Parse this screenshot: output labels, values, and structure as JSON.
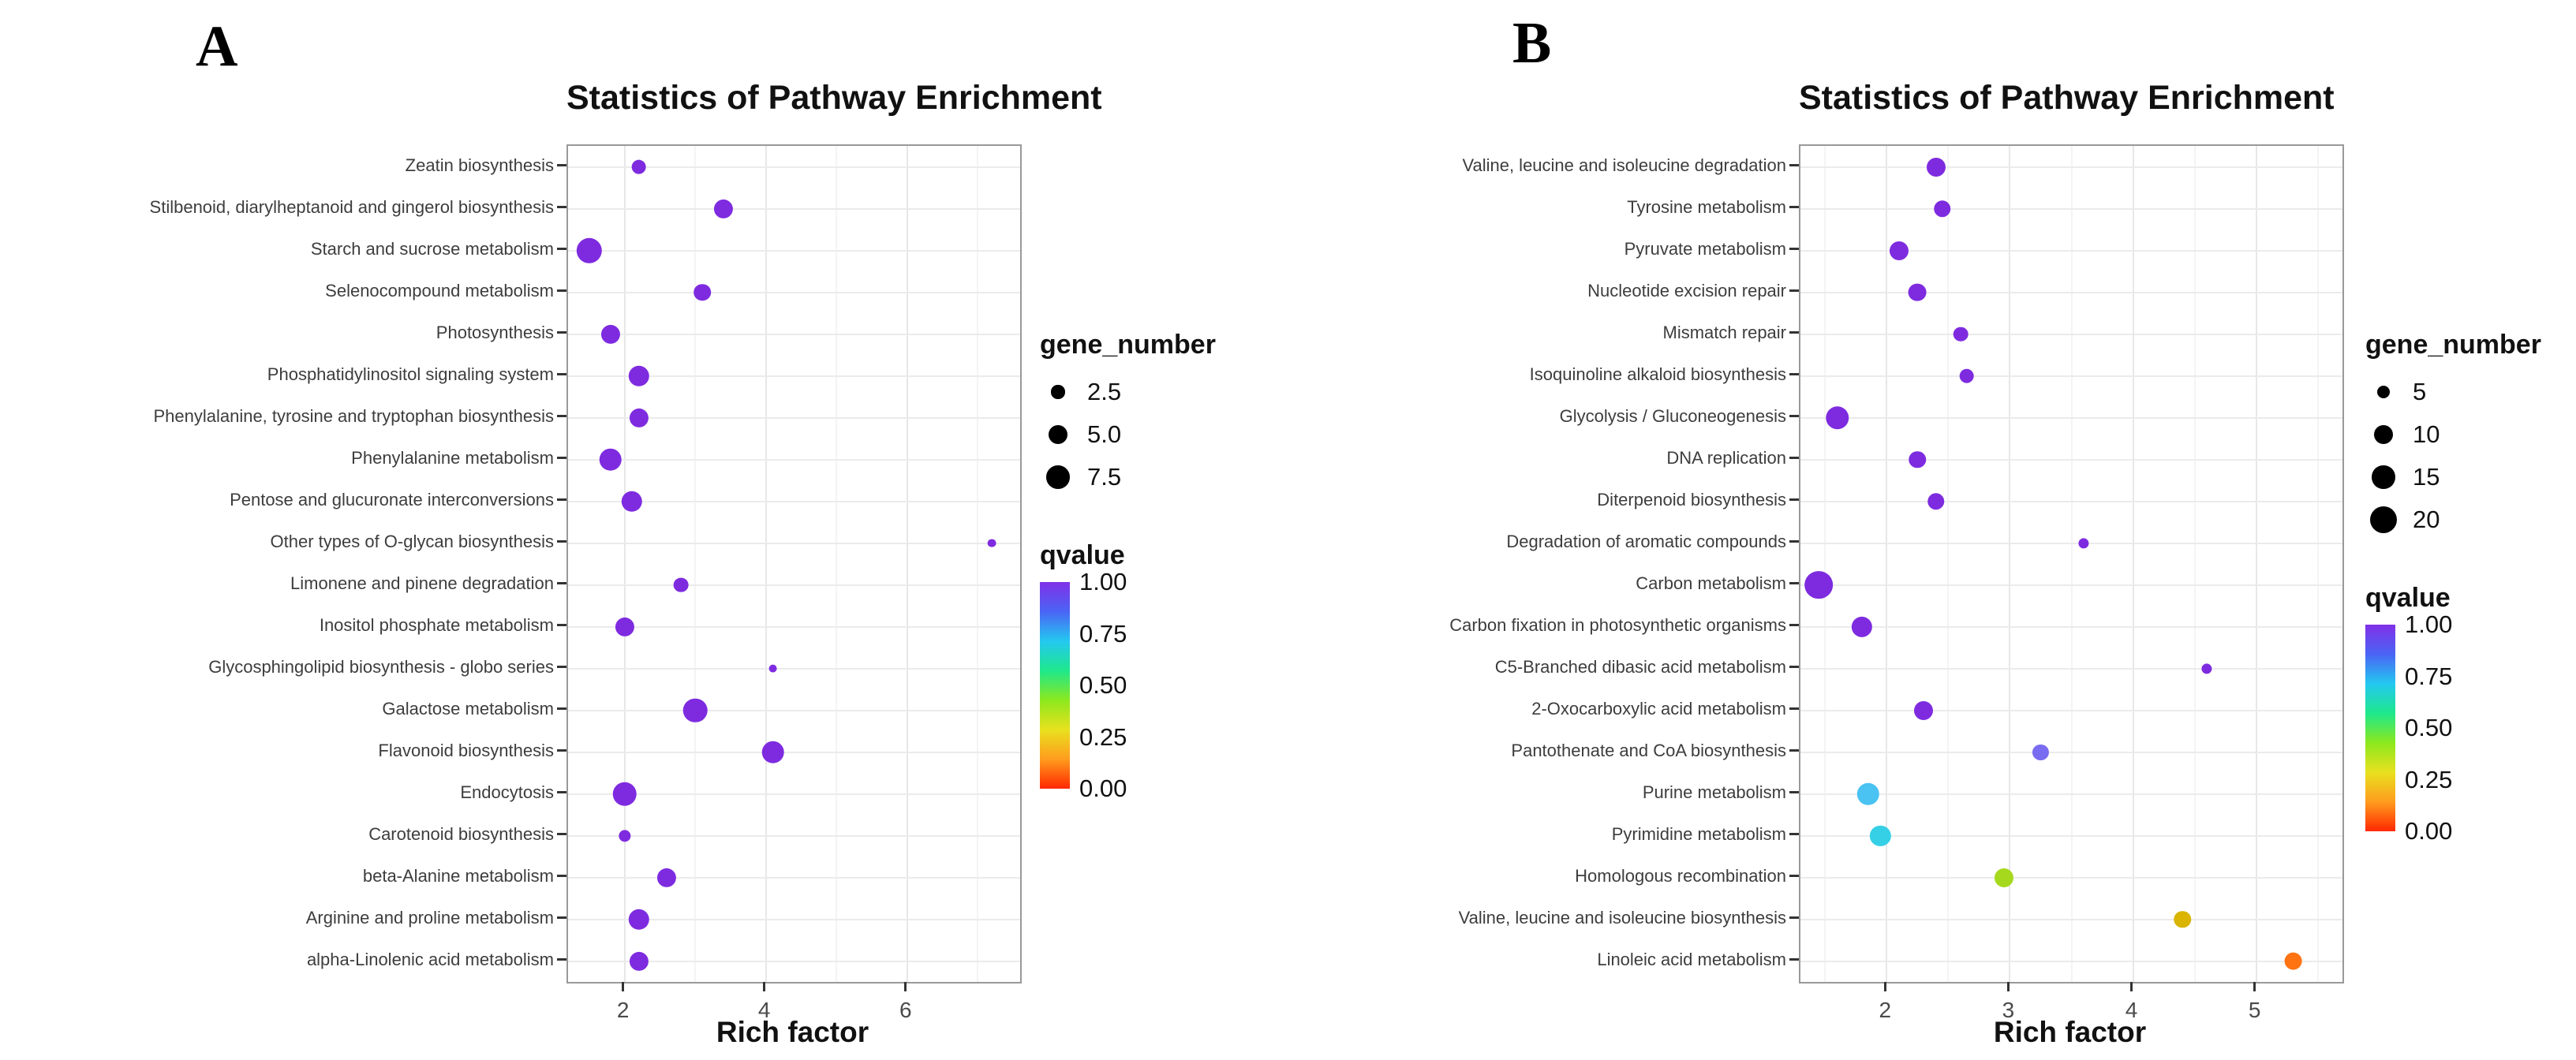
{
  "chart_data": [
    {
      "panel_label": "A",
      "type": "scatter",
      "title": "Statistics of Pathway Enrichment",
      "xlabel": "Rich factor",
      "x_ticks": [
        2,
        4,
        6
      ],
      "x_range": [
        1.2,
        7.6
      ],
      "grid": true,
      "legend_position": "right",
      "size_legend": {
        "title": "gene_number",
        "values": [
          2.5,
          5.0,
          7.5
        ],
        "labels": [
          "2.5",
          "5.0",
          "7.5"
        ]
      },
      "color_legend": {
        "title": "qvalue",
        "tick_labels": [
          "1.00",
          "0.75",
          "0.50",
          "0.25",
          "0.00"
        ],
        "gradient": [
          "#8130e8",
          "#4a64f5",
          "#24c8f0",
          "#1ee88c",
          "#8ce81e",
          "#e8e11e",
          "#ff9c1e",
          "#ff2800"
        ]
      },
      "points": [
        {
          "pathway": "Zeatin biosynthesis",
          "rich_factor": 2.2,
          "gene_number": 3,
          "qvalue": 1.0,
          "color": "#7e2be0"
        },
        {
          "pathway": "Stilbenoid, diarylheptanoid and gingerol biosynthesis",
          "rich_factor": 3.4,
          "gene_number": 5,
          "qvalue": 1.0,
          "color": "#7e2be0"
        },
        {
          "pathway": "Starch and sucrose metabolism",
          "rich_factor": 1.5,
          "gene_number": 9,
          "qvalue": 1.0,
          "color": "#7e2be0"
        },
        {
          "pathway": "Selenocompound metabolism",
          "rich_factor": 3.1,
          "gene_number": 4,
          "qvalue": 1.0,
          "color": "#7e2be0"
        },
        {
          "pathway": "Photosynthesis",
          "rich_factor": 1.8,
          "gene_number": 5,
          "qvalue": 1.0,
          "color": "#7e2be0"
        },
        {
          "pathway": "Phosphatidylinositol signaling system",
          "rich_factor": 2.2,
          "gene_number": 6,
          "qvalue": 1.0,
          "color": "#7e2be0"
        },
        {
          "pathway": "Phenylalanine, tyrosine and tryptophan biosynthesis",
          "rich_factor": 2.2,
          "gene_number": 5,
          "qvalue": 1.0,
          "color": "#7e2be0"
        },
        {
          "pathway": "Phenylalanine metabolism",
          "rich_factor": 1.8,
          "gene_number": 7,
          "qvalue": 1.0,
          "color": "#7e2be0"
        },
        {
          "pathway": "Pentose and glucuronate interconversions",
          "rich_factor": 2.1,
          "gene_number": 6,
          "qvalue": 1.0,
          "color": "#7e2be0"
        },
        {
          "pathway": "Other types of O-glycan biosynthesis",
          "rich_factor": 7.2,
          "gene_number": 1,
          "qvalue": 1.0,
          "color": "#7e2be0"
        },
        {
          "pathway": "Limonene and pinene degradation",
          "rich_factor": 2.8,
          "gene_number": 3,
          "qvalue": 1.0,
          "color": "#7e2be0"
        },
        {
          "pathway": "Inositol phosphate metabolism",
          "rich_factor": 2.0,
          "gene_number": 5,
          "qvalue": 1.0,
          "color": "#7e2be0"
        },
        {
          "pathway": "Glycosphingolipid biosynthesis - globo series",
          "rich_factor": 4.1,
          "gene_number": 1,
          "qvalue": 1.0,
          "color": "#7e2be0"
        },
        {
          "pathway": "Galactose metabolism",
          "rich_factor": 3.0,
          "gene_number": 8,
          "qvalue": 1.0,
          "color": "#7e2be0"
        },
        {
          "pathway": "Flavonoid biosynthesis",
          "rich_factor": 4.1,
          "gene_number": 7,
          "qvalue": 1.0,
          "color": "#7e2be0"
        },
        {
          "pathway": "Endocytosis",
          "rich_factor": 2.0,
          "gene_number": 8,
          "qvalue": 1.0,
          "color": "#7e2be0"
        },
        {
          "pathway": "Carotenoid biosynthesis",
          "rich_factor": 2.0,
          "gene_number": 2,
          "qvalue": 1.0,
          "color": "#7e2be0"
        },
        {
          "pathway": "beta-Alanine metabolism",
          "rich_factor": 2.6,
          "gene_number": 5,
          "qvalue": 1.0,
          "color": "#7e2be0"
        },
        {
          "pathway": "Arginine and proline metabolism",
          "rich_factor": 2.2,
          "gene_number": 6,
          "qvalue": 1.0,
          "color": "#7e2be0"
        },
        {
          "pathway": "alpha-Linolenic acid metabolism",
          "rich_factor": 2.2,
          "gene_number": 5,
          "qvalue": 1.0,
          "color": "#7e2be0"
        }
      ]
    },
    {
      "panel_label": "B",
      "type": "scatter",
      "title": "Statistics of Pathway Enrichment",
      "xlabel": "Rich factor",
      "x_ticks": [
        2,
        3,
        4,
        5
      ],
      "x_range": [
        1.3,
        5.7
      ],
      "grid": true,
      "legend_position": "right",
      "size_legend": {
        "title": "gene_number",
        "values": [
          5,
          10,
          15,
          20
        ],
        "labels": [
          "5",
          "10",
          "15",
          "20"
        ]
      },
      "color_legend": {
        "title": "qvalue",
        "tick_labels": [
          "1.00",
          "0.75",
          "0.50",
          "0.25",
          "0.00"
        ],
        "gradient": [
          "#8130e8",
          "#4a64f5",
          "#24c8f0",
          "#1ee88c",
          "#8ce81e",
          "#e8e11e",
          "#ff9c1e",
          "#ff2800"
        ]
      },
      "points": [
        {
          "pathway": "Valine, leucine and isoleucine degradation",
          "rich_factor": 2.4,
          "gene_number": 10,
          "qvalue": 1.0,
          "color": "#7e2be0"
        },
        {
          "pathway": "Tyrosine metabolism",
          "rich_factor": 2.45,
          "gene_number": 8,
          "qvalue": 1.0,
          "color": "#7e2be0"
        },
        {
          "pathway": "Pyruvate metabolism",
          "rich_factor": 2.1,
          "gene_number": 10,
          "qvalue": 1.0,
          "color": "#7e2be0"
        },
        {
          "pathway": "Nucleotide excision repair",
          "rich_factor": 2.25,
          "gene_number": 9,
          "qvalue": 1.0,
          "color": "#7e2be0"
        },
        {
          "pathway": "Mismatch repair",
          "rich_factor": 2.6,
          "gene_number": 6,
          "qvalue": 1.0,
          "color": "#7e2be0"
        },
        {
          "pathway": "Isoquinoline alkaloid biosynthesis",
          "rich_factor": 2.65,
          "gene_number": 6,
          "qvalue": 1.0,
          "color": "#7e2be0"
        },
        {
          "pathway": "Glycolysis / Gluconeogenesis",
          "rich_factor": 1.6,
          "gene_number": 15,
          "qvalue": 1.0,
          "color": "#7e2be0"
        },
        {
          "pathway": "DNA replication",
          "rich_factor": 2.25,
          "gene_number": 8,
          "qvalue": 1.0,
          "color": "#7e2be0"
        },
        {
          "pathway": "Diterpenoid biosynthesis",
          "rich_factor": 2.4,
          "gene_number": 8,
          "qvalue": 1.0,
          "color": "#7e2be0"
        },
        {
          "pathway": "Degradation of aromatic compounds",
          "rich_factor": 3.6,
          "gene_number": 3,
          "qvalue": 1.0,
          "color": "#7e2be0"
        },
        {
          "pathway": "Carbon metabolism",
          "rich_factor": 1.45,
          "gene_number": 22,
          "qvalue": 1.0,
          "color": "#7e2be0"
        },
        {
          "pathway": "Carbon fixation in photosynthetic organisms",
          "rich_factor": 1.8,
          "gene_number": 12,
          "qvalue": 1.0,
          "color": "#7e2be0"
        },
        {
          "pathway": "C5-Branched dibasic acid metabolism",
          "rich_factor": 4.6,
          "gene_number": 3,
          "qvalue": 1.0,
          "color": "#7e2be0"
        },
        {
          "pathway": "2-Oxocarboxylic acid metabolism",
          "rich_factor": 2.3,
          "gene_number": 10,
          "qvalue": 1.0,
          "color": "#7e2be0"
        },
        {
          "pathway": "Pantothenate and CoA biosynthesis",
          "rich_factor": 3.25,
          "gene_number": 7,
          "qvalue": 0.85,
          "color": "#7a6cf0"
        },
        {
          "pathway": "Purine metabolism",
          "rich_factor": 1.85,
          "gene_number": 14,
          "qvalue": 0.7,
          "color": "#4ac2f2"
        },
        {
          "pathway": "Pyrimidine metabolism",
          "rich_factor": 1.95,
          "gene_number": 12,
          "qvalue": 0.65,
          "color": "#35d0e6"
        },
        {
          "pathway": "Homologous recombination",
          "rich_factor": 2.95,
          "gene_number": 10,
          "qvalue": 0.3,
          "color": "#a6d91e"
        },
        {
          "pathway": "Valine, leucine and isoleucine biosynthesis",
          "rich_factor": 4.4,
          "gene_number": 8,
          "qvalue": 0.15,
          "color": "#d9b400"
        },
        {
          "pathway": "Linoleic acid metabolism",
          "rich_factor": 5.3,
          "gene_number": 9,
          "qvalue": 0.05,
          "color": "#ff7312"
        }
      ]
    }
  ]
}
